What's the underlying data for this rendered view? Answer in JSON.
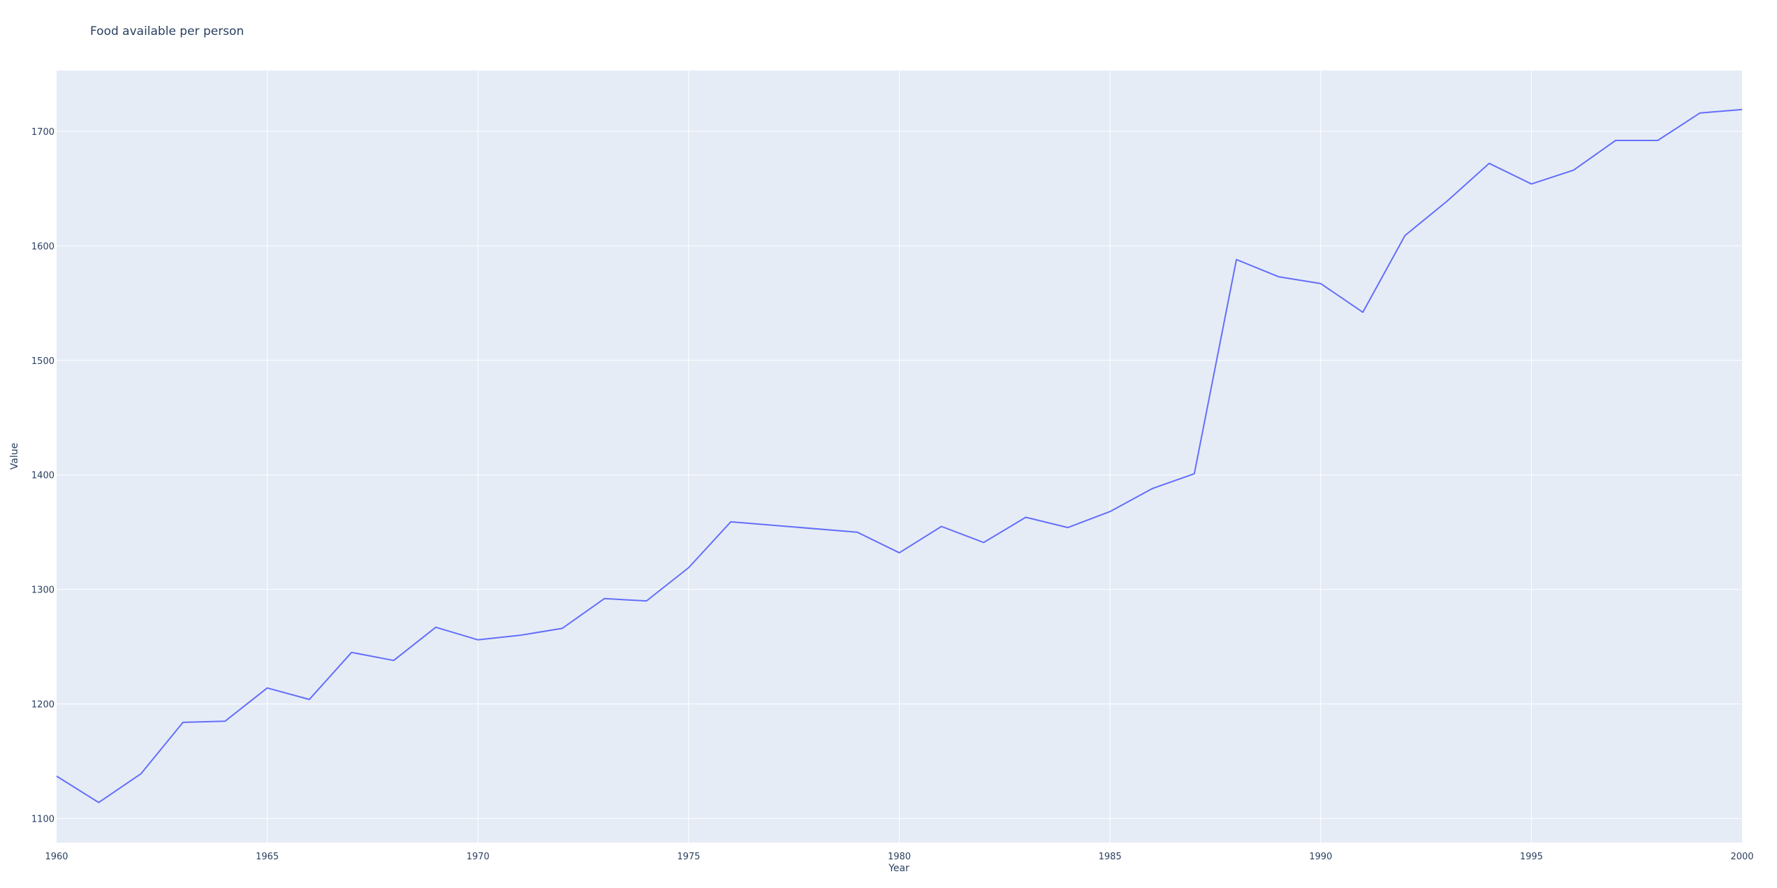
{
  "chart_data": {
    "type": "line",
    "title": "Food available per person",
    "xlabel": "Year",
    "ylabel": "Value",
    "xlim": [
      1960,
      2000
    ],
    "ylim": [
      1079,
      1753
    ],
    "x_ticks": [
      1960,
      1965,
      1970,
      1975,
      1980,
      1985,
      1990,
      1995,
      2000
    ],
    "y_ticks": [
      1100,
      1200,
      1300,
      1400,
      1500,
      1600,
      1700
    ],
    "grid": true,
    "legend": "none",
    "colors": {
      "line": "#636efa",
      "plot_bg": "#e5ecf6",
      "grid": "#ffffff",
      "text": "#2a3f5f"
    },
    "series": [
      {
        "x": [
          1960,
          1961,
          1962,
          1963,
          1964,
          1965,
          1966,
          1967,
          1968,
          1969,
          1970,
          1971,
          1972,
          1973,
          1974,
          1975,
          1976,
          1979,
          1980,
          1981,
          1982,
          1983,
          1984,
          1985,
          1986,
          1987,
          1988,
          1989,
          1990,
          1991,
          1992,
          1993,
          1994,
          1995,
          1996,
          1997,
          1998,
          1999,
          2000
        ],
        "values": [
          1137,
          1114,
          1139,
          1184,
          1185,
          1214,
          1204,
          1245,
          1238,
          1267,
          1256,
          1260,
          1266,
          1292,
          1290,
          1319,
          1359,
          1350,
          1332,
          1355,
          1341,
          1363,
          1354,
          1368,
          1388,
          1401,
          1588,
          1573,
          1567,
          1542,
          1609,
          1639,
          1672,
          1654,
          1666,
          1692,
          1692,
          1716,
          1719
        ]
      }
    ]
  }
}
